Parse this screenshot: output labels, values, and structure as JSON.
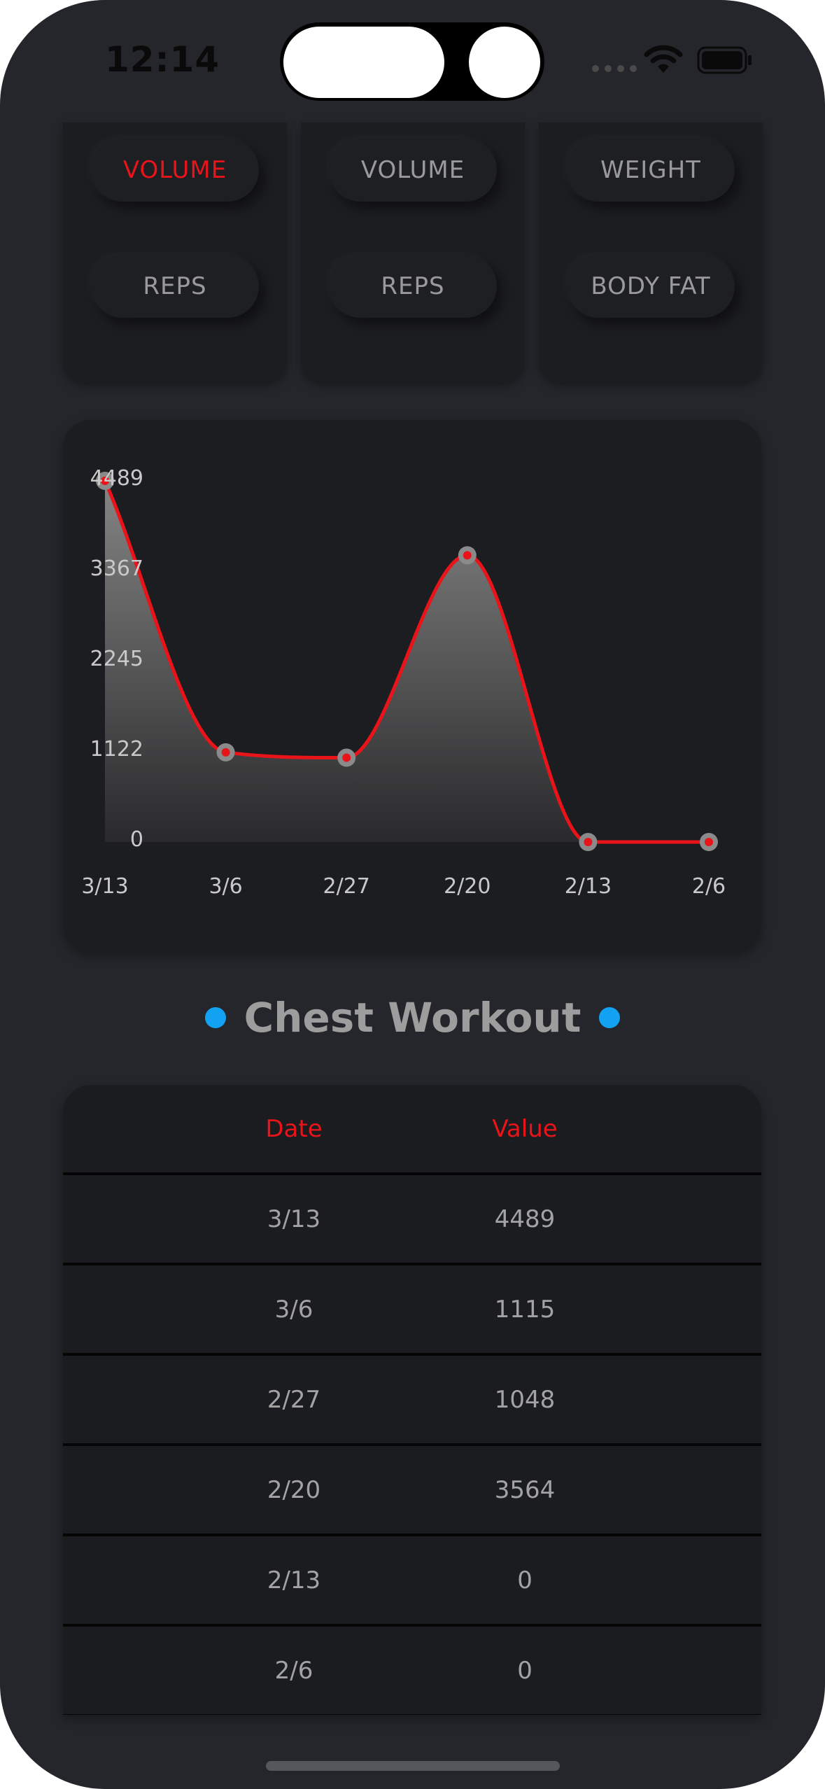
{
  "status_bar": {
    "time": "12:14"
  },
  "toggle_groups": [
    {
      "buttons": [
        {
          "label": "VOLUME",
          "active": true
        },
        {
          "label": "REPS",
          "active": false
        }
      ]
    },
    {
      "buttons": [
        {
          "label": "VOLUME",
          "active": false
        },
        {
          "label": "REPS",
          "active": false
        }
      ]
    },
    {
      "buttons": [
        {
          "label": "WEIGHT",
          "active": false
        },
        {
          "label": "BODY FAT",
          "active": false
        }
      ]
    }
  ],
  "chart_data": {
    "type": "area",
    "x": [
      "3/13",
      "3/6",
      "2/27",
      "2/20",
      "2/13",
      "2/6"
    ],
    "values": [
      4489,
      1115,
      1048,
      3564,
      0,
      0
    ],
    "yticks": [
      "0",
      "1122",
      "2245",
      "3367",
      "4489"
    ],
    "ylim": [
      0,
      4489
    ],
    "line_color": "#e8141a",
    "marker_color": "#e8141a",
    "fill": "gradient-gray",
    "grid": false,
    "legend": "none"
  },
  "section": {
    "title": "Chest Workout",
    "dot_color": "#13a2f2"
  },
  "table": {
    "headers": {
      "date": "Date",
      "value": "Value"
    },
    "rows": [
      {
        "date": "3/13",
        "value": "4489"
      },
      {
        "date": "3/6",
        "value": "1115"
      },
      {
        "date": "2/27",
        "value": "1048"
      },
      {
        "date": "2/20",
        "value": "3564"
      },
      {
        "date": "2/13",
        "value": "0"
      },
      {
        "date": "2/6",
        "value": "0"
      }
    ]
  }
}
